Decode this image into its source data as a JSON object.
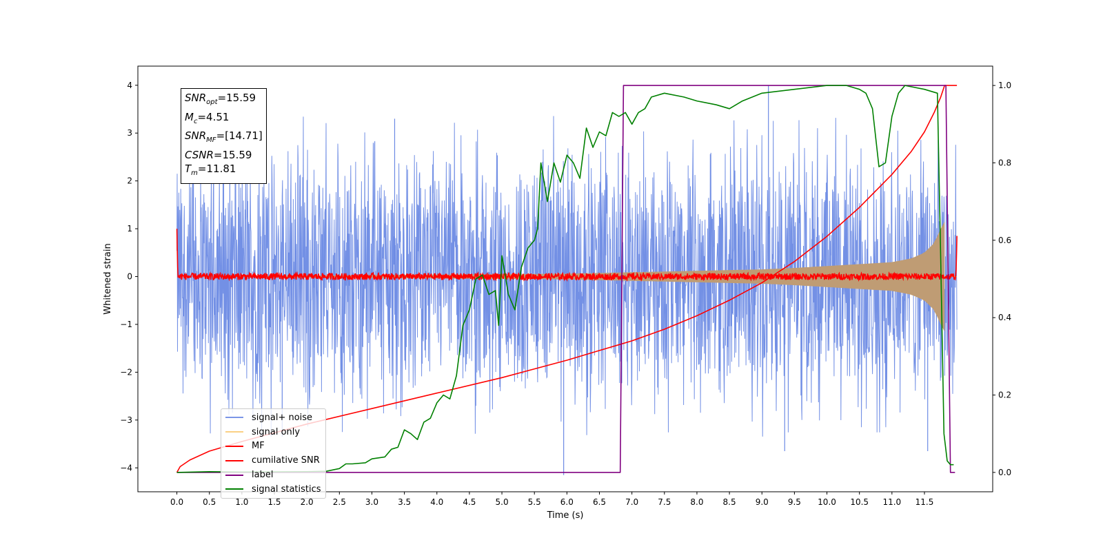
{
  "chart_data": {
    "type": "line",
    "xlabel": "Time (s)",
    "ylabel": "Whitened strain",
    "xlim": [
      -0.6,
      12.55
    ],
    "ylim": [
      -4.5,
      4.4
    ],
    "y2lim": [
      -0.05,
      1.05
    ],
    "x_ticks": [
      "0.0",
      "0.5",
      "1.0",
      "1.5",
      "2.0",
      "2.5",
      "3.0",
      "3.5",
      "4.0",
      "4.5",
      "5.0",
      "5.5",
      "6.0",
      "6.5",
      "7.0",
      "7.5",
      "8.0",
      "8.5",
      "9.0",
      "9.5",
      "10.0",
      "10.5",
      "11.0",
      "11.5"
    ],
    "y_ticks": [
      "4",
      "3",
      "2",
      "1",
      "0",
      "−1",
      "−2",
      "−3",
      "−4"
    ],
    "y2_ticks": [
      "1.0",
      "0.8",
      "0.6",
      "0.4",
      "0.2",
      "0.0"
    ],
    "annotation": [
      {
        "sym": "SNR",
        "sub": "opt",
        "value": "=15.59"
      },
      {
        "sym": "M",
        "sub": "c",
        "value": "=4.51"
      },
      {
        "sym": "SNR",
        "sub": "MF",
        "value": "=[14.71]"
      },
      {
        "sym": "CSNR",
        "sub": "",
        "value": "=15.59"
      },
      {
        "sym": "T",
        "sub": "m",
        "value": "=11.81"
      }
    ],
    "legend": [
      {
        "name": "signal+ noise",
        "color": "#6c8ae4"
      },
      {
        "name": "signal only",
        "color": "#f8c05a"
      },
      {
        "name": "MF",
        "color": "#ff0000"
      },
      {
        "name": "cumilative SNR",
        "color": "#ff0000"
      },
      {
        "name": "label",
        "color": "#800080"
      },
      {
        "name": "signal statistics",
        "color": "#008000"
      }
    ],
    "legend_position": "lower-left",
    "series": [
      {
        "name": "signal+ noise",
        "axis": "left",
        "color": "#6c8ae4",
        "kind": "noise",
        "x_range": [
          0,
          12
        ],
        "envelope": [
          [
            0,
            2.2
          ],
          [
            1,
            2.5
          ],
          [
            2,
            2.4
          ],
          [
            3,
            2.4
          ],
          [
            4,
            2.3
          ],
          [
            5,
            2.4
          ],
          [
            6,
            2.4
          ],
          [
            7,
            2.3
          ],
          [
            8,
            2.4
          ],
          [
            9,
            2.4
          ],
          [
            10,
            2.4
          ],
          [
            11,
            2.4
          ],
          [
            12,
            2.3
          ]
        ],
        "outliers": [
          [
            5.95,
            -4.15
          ],
          [
            9.1,
            4.0
          ],
          [
            3.35,
            3.3
          ],
          [
            1.62,
            -3.35
          ],
          [
            9.35,
            -3.65
          ],
          [
            11.55,
            -3.65
          ]
        ]
      },
      {
        "name": "signal only",
        "axis": "left",
        "color": "#f8c05a",
        "kind": "chirp-band",
        "x": [
          0,
          6.0,
          7.0,
          8.0,
          9.0,
          9.5,
          10.0,
          10.5,
          11.0,
          11.3,
          11.5,
          11.65,
          11.75,
          11.81
        ],
        "y": [
          0.0,
          0.06,
          0.09,
          0.12,
          0.15,
          0.18,
          0.22,
          0.26,
          0.3,
          0.38,
          0.5,
          0.7,
          1.0,
          1.15
        ]
      },
      {
        "name": "MF",
        "axis": "left",
        "color": "#ff0000",
        "kind": "mf-noise",
        "x_range": [
          0,
          12
        ],
        "amplitude": 0.07
      },
      {
        "name": "cumilative SNR",
        "axis": "right",
        "color": "#ff0000",
        "x": [
          0,
          0.05,
          0.2,
          0.5,
          1.0,
          2.0,
          3.0,
          4.0,
          5.0,
          6.0,
          6.5,
          7.0,
          7.5,
          8.0,
          8.5,
          9.0,
          9.5,
          10.0,
          10.5,
          11.0,
          11.3,
          11.5,
          11.65,
          11.75,
          11.81,
          12.0
        ],
        "y": [
          0.0,
          0.015,
          0.032,
          0.055,
          0.08,
          0.125,
          0.165,
          0.205,
          0.245,
          0.29,
          0.315,
          0.34,
          0.37,
          0.405,
          0.445,
          0.49,
          0.545,
          0.61,
          0.685,
          0.77,
          0.83,
          0.88,
          0.93,
          0.97,
          1.0,
          1.0
        ]
      },
      {
        "name": "label",
        "axis": "right",
        "color": "#800080",
        "x": [
          0,
          6.82,
          6.87,
          11.83,
          11.9,
          11.97
        ],
        "y": [
          0.0,
          0.0,
          1.0,
          1.0,
          0.0,
          0.0
        ]
      },
      {
        "name": "signal statistics",
        "axis": "right",
        "color": "#008000",
        "x": [
          0,
          0.5,
          1.0,
          2.0,
          2.3,
          2.5,
          2.6,
          2.7,
          2.9,
          3.0,
          3.2,
          3.3,
          3.4,
          3.5,
          3.6,
          3.7,
          3.8,
          3.9,
          4.0,
          4.1,
          4.2,
          4.3,
          4.4,
          4.5,
          4.6,
          4.7,
          4.8,
          4.9,
          4.95,
          5.0,
          5.1,
          5.2,
          5.3,
          5.4,
          5.5,
          5.55,
          5.6,
          5.7,
          5.8,
          5.9,
          6.0,
          6.1,
          6.2,
          6.3,
          6.4,
          6.5,
          6.6,
          6.7,
          6.8,
          6.9,
          7.0,
          7.1,
          7.2,
          7.3,
          7.5,
          7.8,
          8.0,
          8.3,
          8.5,
          8.7,
          9.0,
          9.5,
          10.0,
          10.3,
          10.5,
          10.6,
          10.7,
          10.8,
          10.9,
          11.0,
          11.1,
          11.2,
          11.5,
          11.7,
          11.75,
          11.8,
          11.85,
          11.9,
          11.95
        ],
        "y": [
          0.0,
          0.002,
          0.001,
          0.002,
          0.003,
          0.01,
          0.022,
          0.022,
          0.025,
          0.035,
          0.04,
          0.06,
          0.065,
          0.11,
          0.1,
          0.085,
          0.13,
          0.14,
          0.18,
          0.2,
          0.19,
          0.25,
          0.38,
          0.42,
          0.5,
          0.51,
          0.46,
          0.47,
          0.38,
          0.56,
          0.46,
          0.42,
          0.53,
          0.58,
          0.6,
          0.63,
          0.8,
          0.7,
          0.8,
          0.75,
          0.82,
          0.8,
          0.76,
          0.89,
          0.84,
          0.88,
          0.87,
          0.93,
          0.92,
          0.93,
          0.9,
          0.93,
          0.94,
          0.97,
          0.98,
          0.97,
          0.96,
          0.95,
          0.94,
          0.96,
          0.98,
          0.99,
          1.0,
          1.0,
          0.99,
          0.98,
          0.94,
          0.79,
          0.8,
          0.92,
          0.98,
          1.0,
          0.99,
          0.98,
          0.55,
          0.1,
          0.03,
          0.02,
          0.02
        ]
      }
    ]
  }
}
